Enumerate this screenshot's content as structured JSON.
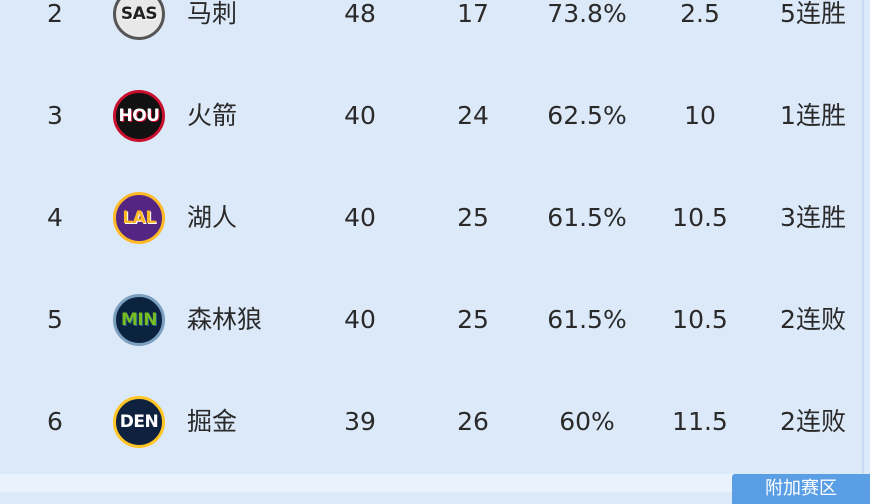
{
  "table": {
    "rows": [
      [
        "2",
        "SAS",
        "马刺",
        "48",
        "17",
        "73.8%",
        "2.5",
        "5连胜"
      ],
      [
        "3",
        "HOU",
        "火箭",
        "40",
        "24",
        "62.5%",
        "10",
        "1连胜"
      ],
      [
        "4",
        "LAL",
        "湖人",
        "40",
        "25",
        "61.5%",
        "10.5",
        "3连胜"
      ],
      [
        "5",
        "MIN",
        "森林狼",
        "40",
        "25",
        "61.5%",
        "10.5",
        "2连败"
      ],
      [
        "6",
        "DEN",
        "掘金",
        "39",
        "26",
        "60%",
        "11.5",
        "2连败"
      ]
    ]
  },
  "footer": {
    "button": "附加赛区"
  }
}
